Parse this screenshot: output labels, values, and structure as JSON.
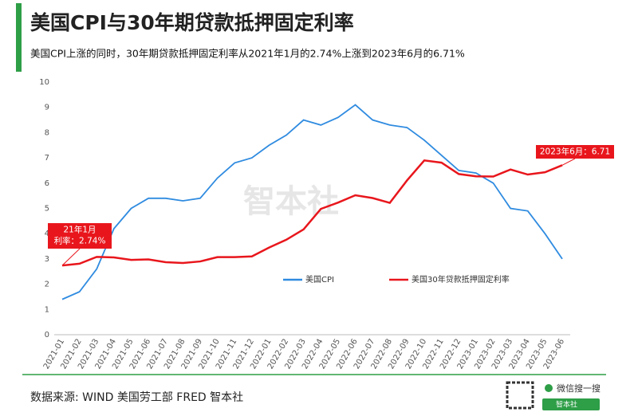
{
  "chart_data": {
    "type": "line",
    "title": "美国CPI与30年期贷款抵押固定利率",
    "subtitle": "美国CPI上涨的同时，30年期贷款抵押固定利率从2021年1月的2.74%上涨到2023年6月的6.71%",
    "categories": [
      "2021-01",
      "2021-02",
      "2021-03",
      "2021-04",
      "2021-05",
      "2021-06",
      "2021-07",
      "2021-08",
      "2021-09",
      "2021-10",
      "2021-11",
      "2021-12",
      "2022-01",
      "2022-02",
      "2022-03",
      "2022-04",
      "2022-05",
      "2022-06",
      "2022-07",
      "2022-08",
      "2022-09",
      "2022-10",
      "2022-11",
      "2022-12",
      "2023-01",
      "2023-02",
      "2023-03",
      "2023-04",
      "2023-05",
      "2023-06"
    ],
    "series": [
      {
        "name": "美国CPI",
        "color": "#2f8be0",
        "values": [
          1.4,
          1.7,
          2.6,
          4.2,
          5.0,
          5.4,
          5.4,
          5.3,
          5.4,
          6.2,
          6.8,
          7.0,
          7.5,
          7.9,
          8.5,
          8.3,
          8.6,
          9.1,
          8.5,
          8.3,
          8.2,
          7.7,
          7.1,
          6.5,
          6.4,
          6.0,
          5.0,
          4.9,
          4.0,
          3.0
        ]
      },
      {
        "name": "美国30年贷款抵押固定利率",
        "color": "#e8161c",
        "values": [
          2.74,
          2.81,
          3.08,
          3.06,
          2.96,
          2.98,
          2.87,
          2.84,
          2.9,
          3.07,
          3.07,
          3.1,
          3.45,
          3.76,
          4.17,
          4.98,
          5.23,
          5.52,
          5.41,
          5.22,
          6.11,
          6.9,
          6.81,
          6.36,
          6.27,
          6.26,
          6.54,
          6.34,
          6.43,
          6.71
        ]
      }
    ],
    "ylim": [
      0,
      10
    ],
    "yticks": [
      0,
      1,
      2,
      3,
      4,
      5,
      6,
      7,
      8,
      9,
      10
    ],
    "annotations": [
      [
        "21年1月",
        "利率：2.74%"
      ],
      [
        "2023年6月：6.71"
      ]
    ],
    "watermark": "智本社",
    "source": "数据来源: WIND 美国劳工部 FRED 智本社",
    "search_label": "微信搜一搜",
    "search_box": "智本社"
  }
}
